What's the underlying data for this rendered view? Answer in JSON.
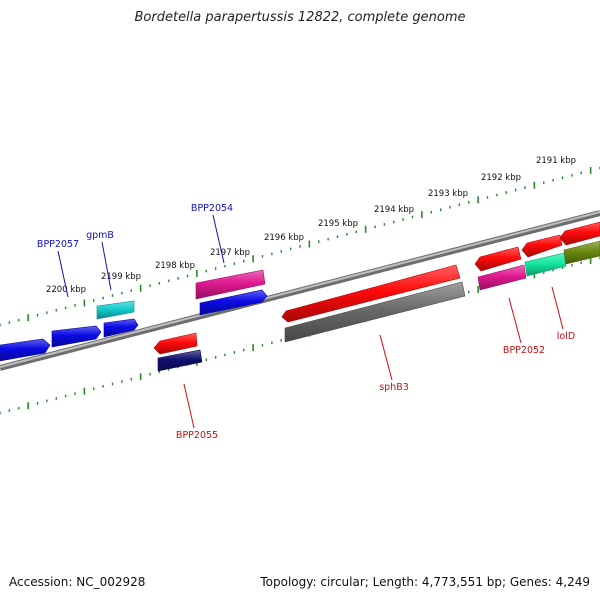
{
  "title": "Bordetella parapertussis 12822, complete genome",
  "footer": {
    "accession": "Accession: NC_002928",
    "summary": "Topology: circular; Length: 4,773,551 bp; Genes: 4,249"
  },
  "colors": {
    "ruler": "#2a8a2a",
    "backbone": "#8a8a8a",
    "forward_label": "#1010c8",
    "reverse_label": "#c81010",
    "kbp_label": "#111111"
  },
  "ruler_labels": [
    "2191 kbp",
    "2192 kbp",
    "2193 kbp",
    "2194 kbp",
    "2195 kbp",
    "2196 kbp",
    "2197 kbp",
    "2198 kbp",
    "2199 kbp",
    "2200 kbp"
  ],
  "gene_labels": [
    "BPP2057",
    "gpmB",
    "BPP2054",
    "BPP2055",
    "sphB3",
    "BPP2052",
    "lolD"
  ],
  "features": [
    {
      "strand": "forward",
      "color": "#0a0ae6"
    },
    {
      "strand": "forward",
      "color": "#0a0ae6"
    },
    {
      "strand": "forward",
      "color": "#0a0ae6"
    },
    {
      "strand": "forward",
      "color": "#0a0ae6"
    },
    {
      "strand": "forward",
      "color": "#14cccc"
    },
    {
      "strand": "forward",
      "color": "#e01890"
    },
    {
      "strand": "forward",
      "color": "#e01890"
    },
    {
      "strand": "forward",
      "color": "#ff0a0a"
    },
    {
      "strand": "forward",
      "color": "#ff0a0a"
    },
    {
      "strand": "forward",
      "color": "#ff0a0a"
    },
    {
      "strand": "forward",
      "color": "#ff0a0a"
    },
    {
      "strand": "reverse",
      "color": "#ff0a0a"
    },
    {
      "strand": "reverse",
      "color": "#101070"
    },
    {
      "strand": "reverse",
      "color": "#6a6a6a"
    },
    {
      "strand": "reverse",
      "color": "#e01890"
    },
    {
      "strand": "reverse",
      "color": "#14e8a0"
    },
    {
      "strand": "reverse",
      "color": "#6a8a10"
    }
  ]
}
